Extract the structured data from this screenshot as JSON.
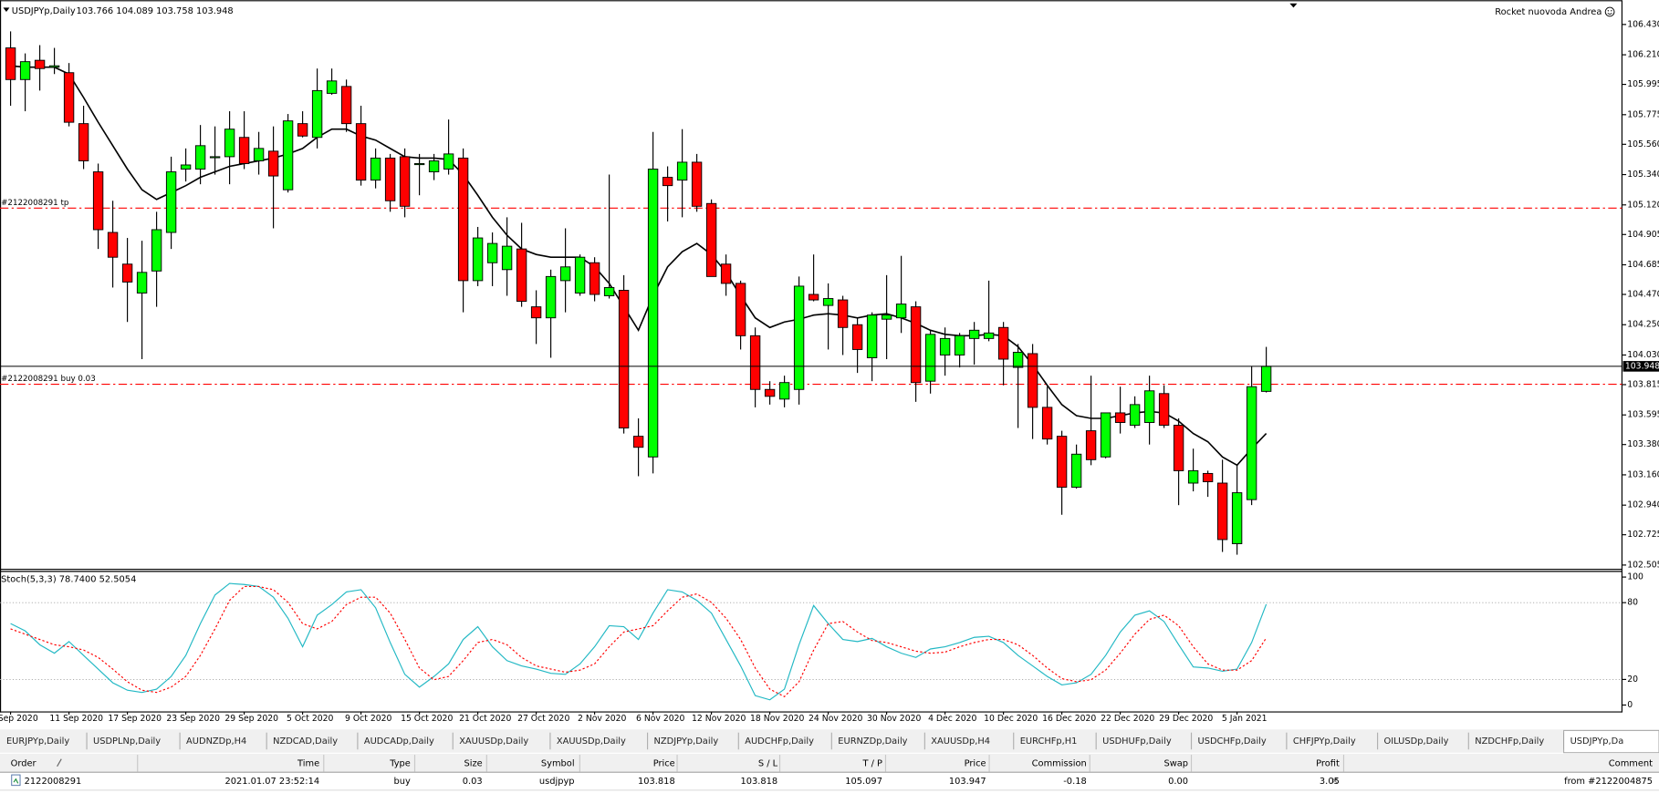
{
  "header": {
    "expert": "Rocket nuovoda Andrea"
  },
  "chart_data": [
    {
      "type": "candlestick",
      "title": "USDJPYp,Daily",
      "subtitle": "103.766 104.089 103.758 103.948",
      "up_color": "#00ff00",
      "down_color": "#ff0000",
      "line_color": "#000000",
      "categories": [
        "Sep 2020",
        null,
        null,
        null,
        "11 Sep 2020",
        null,
        null,
        null,
        "17 Sep 2020",
        null,
        null,
        null,
        "23 Sep 2020",
        null,
        null,
        null,
        "29 Sep 2020",
        null,
        null,
        null,
        "5 Oct 2020",
        null,
        null,
        null,
        "9 Oct 2020",
        null,
        null,
        null,
        "15 Oct 2020",
        null,
        null,
        null,
        "21 Oct 2020",
        null,
        null,
        null,
        "27 Oct 2020",
        null,
        null,
        null,
        "2 Nov 2020",
        null,
        null,
        null,
        "6 Nov 2020",
        null,
        null,
        null,
        "12 Nov 2020",
        null,
        null,
        null,
        "18 Nov 2020",
        null,
        null,
        null,
        "24 Nov 2020",
        null,
        null,
        null,
        "30 Nov 2020",
        null,
        null,
        null,
        "4 Dec 2020",
        null,
        null,
        null,
        "10 Dec 2020",
        null,
        null,
        null,
        "16 Dec 2020",
        null,
        null,
        null,
        "22 Dec 2020",
        null,
        null,
        null,
        "29 Dec 2020",
        null,
        null,
        null,
        "5 Jan 2021",
        null,
        null
      ],
      "open": [
        106.26,
        106.03,
        106.17,
        106.12,
        106.08,
        105.71,
        105.36,
        104.92,
        104.69,
        104.48,
        104.64,
        104.92,
        105.38,
        105.38,
        105.47,
        105.47,
        105.61,
        105.44,
        105.51,
        105.23,
        105.71,
        105.61,
        105.93,
        105.98,
        105.71,
        105.3,
        105.46,
        105.47,
        105.42,
        105.36,
        105.38,
        105.46,
        104.57,
        104.7,
        104.65,
        104.8,
        104.38,
        104.3,
        104.57,
        104.48,
        104.7,
        104.46,
        104.5,
        103.44,
        103.29,
        105.32,
        105.3,
        105.43,
        105.13,
        104.69,
        104.55,
        104.17,
        103.78,
        103.71,
        103.78,
        104.47,
        104.39,
        104.43,
        104.25,
        104.01,
        104.29,
        104.3,
        104.38,
        103.84,
        104.03,
        104.03,
        104.15,
        104.15,
        104.23,
        103.94,
        104.04,
        103.65,
        103.44,
        103.07,
        103.48,
        103.29,
        103.61,
        103.52,
        103.54,
        103.75,
        103.52,
        103.1,
        103.17,
        103.1,
        102.66,
        102.98,
        103.766
      ],
      "high": [
        106.38,
        106.22,
        106.28,
        106.26,
        106.15,
        105.84,
        105.42,
        105.15,
        104.88,
        104.86,
        105.07,
        105.47,
        105.53,
        105.7,
        105.69,
        105.8,
        105.8,
        105.65,
        105.69,
        105.78,
        105.8,
        106.11,
        106.11,
        106.03,
        105.84,
        105.53,
        105.49,
        105.53,
        105.49,
        105.49,
        105.74,
        105.53,
        104.96,
        104.92,
        105.03,
        104.99,
        104.5,
        104.65,
        104.95,
        104.76,
        104.74,
        105.34,
        104.61,
        103.57,
        105.65,
        105.4,
        105.67,
        105.49,
        105.16,
        104.76,
        104.57,
        104.23,
        103.84,
        103.88,
        104.6,
        104.76,
        104.55,
        104.46,
        104.3,
        104.34,
        104.61,
        104.75,
        104.42,
        104.21,
        104.23,
        104.19,
        104.27,
        104.57,
        104.27,
        104.11,
        104.11,
        103.8,
        103.48,
        103.38,
        103.88,
        103.61,
        103.8,
        103.73,
        103.88,
        103.81,
        103.57,
        103.35,
        103.19,
        103.27,
        103.23,
        103.95,
        104.089
      ],
      "low": [
        105.84,
        105.8,
        105.95,
        106.07,
        105.69,
        105.38,
        104.8,
        104.52,
        104.27,
        104.0,
        104.38,
        104.8,
        105.29,
        105.27,
        105.34,
        105.27,
        105.38,
        105.34,
        104.95,
        105.21,
        105.61,
        105.53,
        105.92,
        105.65,
        105.26,
        105.24,
        105.07,
        105.03,
        105.19,
        105.3,
        105.34,
        104.34,
        104.53,
        104.53,
        104.46,
        104.38,
        104.11,
        104.01,
        104.34,
        104.46,
        104.42,
        104.44,
        103.46,
        103.15,
        103.17,
        105.0,
        105.03,
        105.07,
        104.6,
        104.46,
        104.07,
        103.65,
        103.67,
        103.65,
        103.67,
        104.42,
        104.07,
        104.03,
        103.9,
        103.84,
        104.0,
        104.19,
        103.69,
        103.75,
        103.88,
        103.94,
        103.96,
        104.13,
        103.81,
        103.5,
        103.42,
        103.38,
        102.87,
        103.06,
        103.23,
        103.28,
        103.46,
        103.5,
        103.38,
        103.5,
        102.94,
        103.04,
        103.0,
        102.6,
        102.58,
        102.94,
        103.758
      ],
      "close": [
        106.03,
        106.16,
        106.11,
        106.13,
        105.72,
        105.44,
        104.94,
        104.74,
        104.56,
        104.63,
        104.94,
        105.36,
        105.41,
        105.55,
        105.47,
        105.67,
        105.42,
        105.53,
        105.33,
        105.73,
        105.62,
        105.95,
        106.02,
        105.71,
        105.3,
        105.46,
        105.15,
        105.11,
        105.42,
        105.44,
        105.49,
        104.57,
        104.88,
        104.84,
        104.82,
        104.42,
        104.3,
        104.6,
        104.67,
        104.74,
        104.47,
        104.52,
        103.5,
        103.36,
        105.38,
        105.26,
        105.43,
        105.11,
        104.6,
        104.55,
        104.17,
        103.78,
        103.73,
        103.83,
        104.53,
        104.43,
        104.44,
        104.23,
        104.07,
        104.32,
        104.32,
        104.4,
        103.83,
        104.18,
        104.15,
        104.17,
        104.21,
        104.19,
        104.0,
        104.05,
        103.65,
        103.42,
        103.07,
        103.31,
        103.27,
        103.61,
        103.54,
        103.67,
        103.77,
        103.52,
        103.19,
        103.19,
        103.11,
        102.69,
        103.03,
        103.8,
        103.948
      ],
      "ma_values": [
        106.13,
        106.12,
        106.12,
        106.12,
        106.07,
        105.9,
        105.72,
        105.55,
        105.38,
        105.23,
        105.16,
        105.21,
        105.26,
        105.32,
        105.36,
        105.4,
        105.42,
        105.44,
        105.46,
        105.49,
        105.53,
        105.61,
        105.67,
        105.67,
        105.62,
        105.59,
        105.53,
        105.47,
        105.46,
        105.46,
        105.45,
        105.34,
        105.19,
        105.03,
        104.9,
        104.8,
        104.76,
        104.74,
        104.74,
        104.74,
        104.67,
        104.55,
        104.38,
        104.21,
        104.46,
        104.67,
        104.78,
        104.84,
        104.76,
        104.63,
        104.46,
        104.3,
        104.23,
        104.27,
        104.29,
        104.32,
        104.33,
        104.32,
        104.3,
        104.32,
        104.33,
        104.3,
        104.26,
        104.21,
        104.18,
        104.17,
        104.17,
        104.18,
        104.17,
        104.09,
        103.96,
        103.81,
        103.67,
        103.59,
        103.57,
        103.57,
        103.59,
        103.61,
        103.62,
        103.61,
        103.55,
        103.46,
        103.4,
        103.29,
        103.23,
        103.35,
        103.46
      ],
      "ylim": [
        102.478,
        106.591
      ],
      "yticks": [
        {
          "value": 106.43,
          "label": "106.430"
        },
        {
          "value": 106.21,
          "label": "106.210"
        },
        {
          "value": 105.995,
          "label": "105.995"
        },
        {
          "value": 105.775,
          "label": "105.775"
        },
        {
          "value": 105.56,
          "label": "105.560"
        },
        {
          "value": 105.34,
          "label": "105.340"
        },
        {
          "value": 105.12,
          "label": "105.120"
        },
        {
          "value": 104.905,
          "label": "104.905"
        },
        {
          "value": 104.685,
          "label": "104.685"
        },
        {
          "value": 104.47,
          "label": "104.470"
        },
        {
          "value": 104.25,
          "label": "104.250"
        },
        {
          "value": 104.03,
          "label": "104.030"
        },
        {
          "value": 103.815,
          "label": "103.815"
        },
        {
          "value": 103.595,
          "label": "103.595"
        },
        {
          "value": 103.38,
          "label": "103.380"
        },
        {
          "value": 103.16,
          "label": "103.160"
        },
        {
          "value": 102.94,
          "label": "102.940"
        },
        {
          "value": 102.725,
          "label": "102.725"
        },
        {
          "value": 102.505,
          "label": "102.505"
        }
      ],
      "levels": [
        {
          "label": "#2122008291 tp",
          "value": 105.097
        },
        {
          "label": "#2122008291 buy 0.03",
          "value": 103.818
        }
      ],
      "level_color": "#ff0000",
      "last_price": {
        "value": 103.948,
        "label": "103.948"
      }
    },
    {
      "type": "line",
      "title": "Stoch(5,3,3) 78.7400 52.5054",
      "series": [
        {
          "color": "#22b8c4",
          "dashed": false,
          "values": [
            63.6,
            57.9,
            47.1,
            40.5,
            49.6,
            38.8,
            28.1,
            17.4,
            11.6,
            9.9,
            12.4,
            22.3,
            38.8,
            63.6,
            86.0,
            95.0,
            94.2,
            92.6,
            84.3,
            67.8,
            45.5,
            70.2,
            78.5,
            88.4,
            90.1,
            76.0,
            48.8,
            24.0,
            14.0,
            22.3,
            32.2,
            51.2,
            61.2,
            45.5,
            34.7,
            30.6,
            28.1,
            24.8,
            24.0,
            32.2,
            45.5,
            62.0,
            61.2,
            51.2,
            71.9,
            90.1,
            88.4,
            81.8,
            71.9,
            51.2,
            30.6,
            7.4,
            4.1,
            12.4,
            47.1,
            77.7,
            63.6,
            51.2,
            49.6,
            52.1,
            45.5,
            40.5,
            37.2,
            43.8,
            45.5,
            48.8,
            52.9,
            53.7,
            48.8,
            38.8,
            30.6,
            22.3,
            15.7,
            17.4,
            24.0,
            38.8,
            57.0,
            70.2,
            73.6,
            65.3,
            47.1,
            29.8,
            28.9,
            26.4,
            28.1,
            48.8,
            78.74
          ]
        },
        {
          "color": "#ff0000",
          "dashed": true,
          "values": [
            59.5,
            55.4,
            51.2,
            47.1,
            45.5,
            43.0,
            37.2,
            28.1,
            18.2,
            11.6,
            9.9,
            14.0,
            22.3,
            38.8,
            59.5,
            81.8,
            92.6,
            92.6,
            90.1,
            80.2,
            63.6,
            59.5,
            65.3,
            78.5,
            84.3,
            84.3,
            71.9,
            51.2,
            28.9,
            19.8,
            22.3,
            34.7,
            48.8,
            51.2,
            47.1,
            37.2,
            30.6,
            28.1,
            25.6,
            27.3,
            32.2,
            45.5,
            57.0,
            59.5,
            62.0,
            73.6,
            84.3,
            86.8,
            80.2,
            67.8,
            51.2,
            28.9,
            12.4,
            6.6,
            18.2,
            42.9,
            63.6,
            65.3,
            57.0,
            50.4,
            48.8,
            45.5,
            42.1,
            40.5,
            41.3,
            45.5,
            48.8,
            51.2,
            51.2,
            47.1,
            38.8,
            28.9,
            20.7,
            18.2,
            19.8,
            27.3,
            40.5,
            55.4,
            66.9,
            70.2,
            62.0,
            45.5,
            32.2,
            27.3,
            27.3,
            34.7,
            52.51
          ]
        }
      ],
      "ylim": [
        -5,
        104
      ],
      "yticks": [
        0,
        20,
        80,
        100
      ],
      "levels": [
        20,
        80
      ]
    }
  ],
  "tabs": {
    "items": [
      "EURJPYp,Daily",
      "USDPLNp,Daily",
      "AUDNZDp,H4",
      "NZDCAD,Daily",
      "AUDCADp,Daily",
      "XAUUSDp,Daily",
      "XAUUSDp,Daily",
      "NZDJPYp,Daily",
      "AUDCHFp,Daily",
      "EURNZDp,Daily",
      "XAUUSDp,H4",
      "EURCHFp,H1",
      "USDHUFp,Daily",
      "USDCHFp,Daily",
      "CHFJPYp,Daily",
      "OILUSDp,Daily",
      "NZDCHFp,Daily",
      "USDJPYp,Da"
    ],
    "active": 17
  },
  "order_table": {
    "columns": [
      "Order",
      "Time",
      "Type",
      "Size",
      "Symbol",
      "Price",
      "S / L",
      "T / P",
      "Price",
      "Commission",
      "Swap",
      "Profit",
      "Comment"
    ],
    "rows": [
      [
        "2122008291",
        "2021.01.07 23:52:14",
        "buy",
        "0.03",
        "usdjpyp",
        "103.818",
        "103.818",
        "105.097",
        "103.947",
        "-0.18",
        "0.00",
        "3.05",
        "from #2122004875"
      ]
    ]
  }
}
